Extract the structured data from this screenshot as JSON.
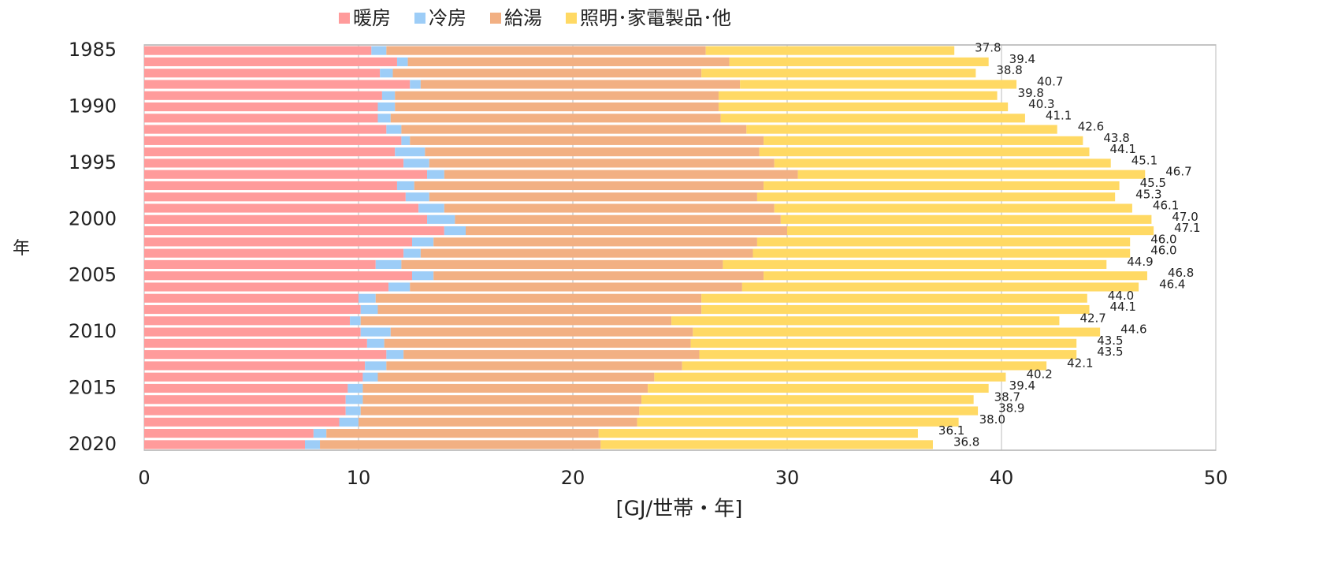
{
  "chart_data": {
    "type": "stacked-barh",
    "x_label": "[GJ/世帯・年]",
    "y_label": "年",
    "categories": [
      "1985",
      null,
      null,
      null,
      null,
      "1990",
      null,
      null,
      null,
      null,
      "1995",
      null,
      null,
      null,
      null,
      "2000",
      null,
      null,
      null,
      null,
      "2005",
      null,
      null,
      null,
      null,
      "2010",
      null,
      null,
      null,
      null,
      "2015",
      null,
      null,
      null,
      null,
      "2020"
    ],
    "series": [
      {
        "name": "暖房",
        "color": "#ff9b9b",
        "values": [
          10.6,
          11.8,
          11.0,
          12.4,
          11.1,
          10.9,
          10.9,
          11.3,
          12.0,
          11.7,
          12.1,
          13.2,
          11.8,
          12.2,
          12.8,
          13.2,
          14.0,
          12.5,
          12.1,
          10.8,
          12.5,
          11.4,
          10.0,
          10.1,
          9.6,
          10.1,
          10.4,
          11.3,
          10.3,
          10.2,
          9.5,
          9.4,
          9.4,
          9.1,
          7.9,
          7.5
        ]
      },
      {
        "name": "冷房",
        "color": "#9dcdf7",
        "values": [
          0.7,
          0.5,
          0.6,
          0.5,
          0.6,
          0.8,
          0.6,
          0.7,
          0.4,
          1.4,
          1.2,
          0.8,
          0.8,
          1.1,
          1.2,
          1.3,
          1.0,
          1.0,
          0.8,
          1.2,
          1.0,
          1.0,
          0.8,
          0.8,
          0.5,
          1.4,
          0.8,
          0.8,
          1.0,
          0.7,
          0.7,
          0.8,
          0.7,
          0.9,
          0.6,
          0.7
        ]
      },
      {
        "name": "給湯",
        "color": "#f2b083",
        "values": [
          14.9,
          15.0,
          14.4,
          14.9,
          15.1,
          15.1,
          15.4,
          16.1,
          16.5,
          15.6,
          16.1,
          16.5,
          16.3,
          15.3,
          15.4,
          15.2,
          15.0,
          15.1,
          15.5,
          15.0,
          15.4,
          15.5,
          15.2,
          15.1,
          14.5,
          14.1,
          14.3,
          13.8,
          13.8,
          12.9,
          13.3,
          13.0,
          13.0,
          13.0,
          12.7,
          13.1
        ]
      },
      {
        "name": "照明･家電製品･他",
        "color": "#ffd964",
        "values": [
          11.6,
          12.1,
          12.8,
          12.9,
          13.0,
          13.5,
          14.2,
          14.5,
          14.9,
          15.4,
          15.7,
          16.2,
          16.6,
          16.7,
          16.7,
          17.3,
          17.1,
          17.4,
          17.6,
          17.9,
          17.9,
          18.5,
          18.0,
          18.1,
          18.1,
          19.0,
          18.0,
          17.6,
          17.0,
          16.4,
          15.9,
          15.5,
          15.8,
          15.0,
          14.9,
          15.5
        ]
      }
    ],
    "totals": [
      37.8,
      39.4,
      38.8,
      40.7,
      39.8,
      40.3,
      41.1,
      42.6,
      43.8,
      44.1,
      45.1,
      46.7,
      45.5,
      45.3,
      46.1,
      47.0,
      47.1,
      46.0,
      46.0,
      44.9,
      46.8,
      46.4,
      44.0,
      44.1,
      42.7,
      44.6,
      43.5,
      43.5,
      42.1,
      40.2,
      39.4,
      38.7,
      38.9,
      38.0,
      36.1,
      36.8
    ],
    "total_labels": [
      "37.8",
      "39.4",
      "38.8",
      "40.7",
      "39.8",
      "40.3",
      "41.1",
      "42.6",
      "43.8",
      "44.1",
      "45.1",
      "46.7",
      "45.5",
      "45.3",
      "46.1",
      "47.0",
      "47.1",
      "46.0",
      "46.0",
      "44.9",
      "46.8",
      "46.4",
      "44.0",
      "44.1",
      "42.7",
      "44.6",
      "43.5",
      "43.5",
      "42.1",
      "40.2",
      "39.4",
      "38.7",
      "38.9",
      "38.0",
      "36.1",
      "36.8"
    ],
    "xlim": [
      0,
      50
    ],
    "xticks": [
      0,
      10,
      20,
      30,
      40,
      50
    ],
    "grid": true,
    "legend": "top"
  }
}
